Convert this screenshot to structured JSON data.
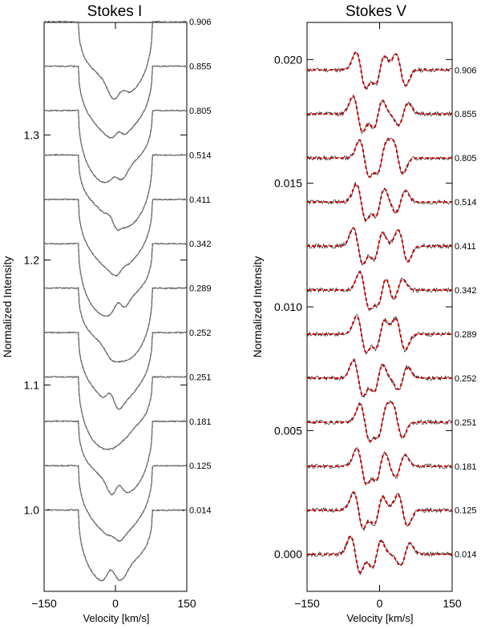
{
  "chart_data": [
    {
      "type": "line",
      "title": "Stokes I",
      "xlabel": "Velocity [km/s]",
      "ylabel": "Normalized Intensity",
      "xlim": [
        -150,
        150
      ],
      "ylim": [
        0.935,
        1.39
      ],
      "xticks": [
        -150,
        0,
        150
      ],
      "xtick_labels": [
        "−150",
        "0",
        "150"
      ],
      "yticks": [
        1.0,
        1.1,
        1.2,
        1.3
      ],
      "ytick_labels": [
        "1.0",
        "1.1",
        "1.2",
        "1.3"
      ],
      "offset_step": 0.0355,
      "phases": [
        "0.906",
        "0.855",
        "0.805",
        "0.514",
        "0.411",
        "0.342",
        "0.289",
        "0.252",
        "0.251",
        "0.181",
        "0.125",
        "0.014"
      ],
      "line_depth": 0.067,
      "observed_color": "#222222",
      "model_color": "#777777",
      "grid": false
    },
    {
      "type": "line",
      "title": "Stokes V",
      "xlabel": "Velocity [km/s]",
      "ylabel": "Normalized Intensity",
      "xlim": [
        -150,
        150
      ],
      "ylim": [
        -0.0015,
        0.0215
      ],
      "xticks": [
        -150,
        0,
        150
      ],
      "xtick_labels": [
        "−150",
        "0",
        "150"
      ],
      "yticks": [
        0.0,
        0.005,
        0.01,
        0.015,
        0.02
      ],
      "ytick_labels": [
        "0.000",
        "0.005",
        "0.010",
        "0.015",
        "0.020"
      ],
      "offset_step": 0.00178,
      "phases": [
        "0.906",
        "0.855",
        "0.805",
        "0.514",
        "0.411",
        "0.342",
        "0.289",
        "0.252",
        "0.251",
        "0.181",
        "0.125",
        "0.014"
      ],
      "signal_amplitude": 0.00075,
      "observed_color": "#222222",
      "model_color": "#cc0000",
      "grid": false
    }
  ]
}
